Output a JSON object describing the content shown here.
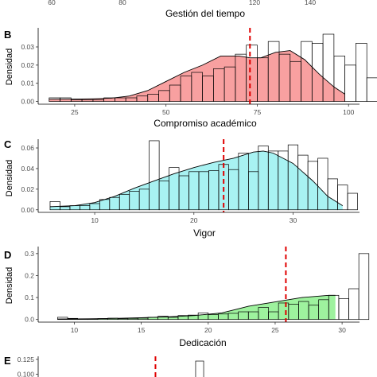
{
  "chart_data": [
    {
      "panel_label": "",
      "type": "histogram",
      "xlabel": "Gestión del tiempo",
      "ylabel": "",
      "x_ticks": [
        60,
        80,
        120,
        140
      ],
      "x_tick_labels": [
        "60",
        "80",
        "120",
        "140"
      ],
      "xlim": [
        43,
        160
      ],
      "partial": "only the bottom x-axis tick labels and x-axis title are visible"
    },
    {
      "panel_label": "B",
      "type": "histogram",
      "xlabel": "Compromiso académico",
      "ylabel": "Densidad",
      "xlim": [
        15,
        103
      ],
      "ylim": [
        -0.0015,
        0.0405
      ],
      "x_ticks": [
        25,
        50,
        75,
        100
      ],
      "y_ticks": [
        0.0,
        0.01,
        0.02,
        0.03
      ],
      "y_tick_labels": [
        "0.00",
        "0.01",
        "0.02",
        "0.03"
      ],
      "fill_color": "#F8A0A0",
      "mean_line": 73,
      "bins": {
        "start": 18,
        "width": 3,
        "density": [
          0.002,
          0.002,
          0.001,
          0.001,
          0.001,
          0.002,
          0.002,
          0.002,
          0.003,
          0.004,
          0.006,
          0.009,
          0.014,
          0.016,
          0.014,
          0.018,
          0.019,
          0.026,
          0.031,
          0.024,
          0.033,
          0.026,
          0.022,
          0.033,
          0.032,
          0.037,
          0.025,
          0.02,
          0.032,
          0.013,
          0.01
        ]
      },
      "density_curve": {
        "x": [
          18,
          25,
          30,
          35,
          40,
          45,
          50,
          55,
          60,
          65,
          70,
          73,
          76,
          80,
          84,
          88,
          92,
          96,
          99
        ],
        "y": [
          0.0012,
          0.0013,
          0.0015,
          0.0018,
          0.003,
          0.006,
          0.011,
          0.016,
          0.02,
          0.025,
          0.025,
          0.024,
          0.024,
          0.027,
          0.028,
          0.023,
          0.015,
          0.008,
          0.004
        ]
      }
    },
    {
      "panel_label": "C",
      "type": "histogram",
      "xlabel": "Vigor",
      "ylabel": "Densidad",
      "xlim": [
        4.3,
        36.7
      ],
      "ylim": [
        -0.0025,
        0.0685
      ],
      "x_ticks": [
        10,
        20,
        30
      ],
      "y_ticks": [
        0.0,
        0.02,
        0.04,
        0.06
      ],
      "y_tick_labels": [
        "0.00",
        "0.02",
        "0.04",
        "0.06"
      ],
      "fill_color": "#A8F2F2",
      "mean_line": 23,
      "bins": {
        "start": 5.5,
        "width": 1,
        "density": [
          0.008,
          0.003,
          0.004,
          0.004,
          0.006,
          0.01,
          0.012,
          0.015,
          0.018,
          0.02,
          0.067,
          0.028,
          0.041,
          0.033,
          0.037,
          0.037,
          0.038,
          0.044,
          0.039,
          0.055,
          0.037,
          0.062,
          0.057,
          0.057,
          0.063,
          0.053,
          0.047,
          0.05,
          0.03,
          0.024,
          0.016
        ]
      },
      "density_curve": {
        "x": [
          5.5,
          8,
          10,
          12,
          14,
          16,
          18,
          20,
          22,
          24,
          26,
          27,
          28,
          30,
          32,
          33.5,
          35
        ],
        "y": [
          0.003,
          0.004,
          0.007,
          0.013,
          0.021,
          0.028,
          0.035,
          0.041,
          0.046,
          0.05,
          0.056,
          0.057,
          0.055,
          0.045,
          0.028,
          0.013,
          0.004
        ]
      }
    },
    {
      "panel_label": "D",
      "type": "histogram",
      "xlabel": "Dedicación",
      "ylabel": "Densidad",
      "xlim": [
        7.3,
        31.3
      ],
      "ylim": [
        -0.012,
        0.332
      ],
      "x_ticks": [
        10,
        15,
        20,
        25,
        30
      ],
      "y_ticks": [
        0.0,
        0.1,
        0.2,
        0.3
      ],
      "y_tick_labels": [
        "0.0",
        "0.1",
        "0.2",
        "0.3"
      ],
      "fill_color": "#9EF29E",
      "mean_line": 25.8,
      "bins": {
        "start": 8.75,
        "width": 0.75,
        "density": [
          0.01,
          0.005,
          0.003,
          0.003,
          0.004,
          0.006,
          0.004,
          0.005,
          0.006,
          0.01,
          0.015,
          0.01,
          0.018,
          0.02,
          0.03,
          0.022,
          0.025,
          0.028,
          0.035,
          0.035,
          0.055,
          0.035,
          0.075,
          0.07,
          0.082,
          0.065,
          0.09,
          0.11,
          0.095,
          0.14,
          0.3
        ]
      },
      "density_curve": {
        "x": [
          8.75,
          11,
          13,
          15,
          17,
          19,
          21,
          22,
          23,
          24,
          25,
          26,
          27,
          28,
          29,
          29.5
        ],
        "y": [
          0.002,
          0.003,
          0.005,
          0.008,
          0.012,
          0.018,
          0.03,
          0.045,
          0.06,
          0.07,
          0.08,
          0.09,
          0.1,
          0.105,
          0.11,
          0.11
        ]
      }
    },
    {
      "panel_label": "E",
      "type": "histogram",
      "ylabel": "",
      "y_ticks": [
        0.1,
        0.125
      ],
      "y_tick_labels": [
        "0.100",
        "0.125"
      ],
      "ylim": [
        0.09,
        0.13
      ],
      "xlim": [
        0,
        10
      ],
      "mean_line": 3.65,
      "partial": "only the top of the panel is visible",
      "bins": {
        "start": 4.9,
        "width": 0.25,
        "density": [
          0.122
        ]
      }
    }
  ]
}
